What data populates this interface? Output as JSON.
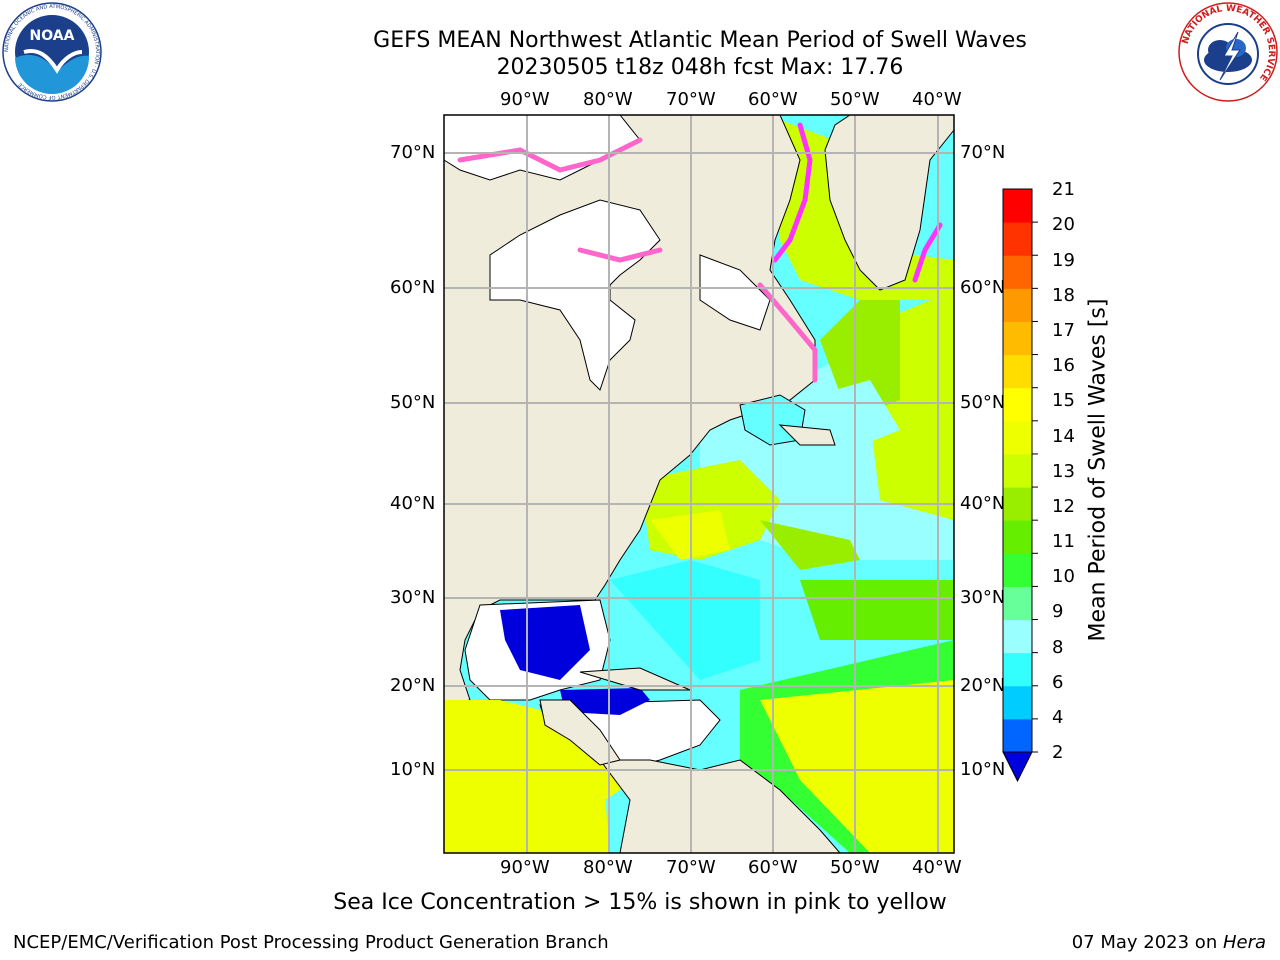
{
  "title_line1": "GEFS MEAN Northwest Atlantic Mean Period of Swell Waves",
  "title_line2": "20230505 t18z 048h fcst   Max: 17.76",
  "lon_ticks": [
    "90°W",
    "80°W",
    "70°W",
    "60°W",
    "50°W",
    "40°W"
  ],
  "lat_ticks": [
    "70°N",
    "60°N",
    "50°N",
    "40°N",
    "30°N",
    "20°N",
    "10°N"
  ],
  "colorbar": {
    "label": "Mean Period of Swell Waves [s]",
    "ticks": [
      "2",
      "4",
      "6",
      "8",
      "9",
      "10",
      "11",
      "12",
      "13",
      "14",
      "15",
      "16",
      "17",
      "18",
      "19",
      "20",
      "21"
    ],
    "colors": [
      "#0066ff",
      "#00ccff",
      "#33ffff",
      "#99ffff",
      "#66ff99",
      "#33ff33",
      "#66ee00",
      "#99ee00",
      "#ccff00",
      "#eeff00",
      "#ffff00",
      "#ffdd00",
      "#ffbb00",
      "#ff9900",
      "#ff6600",
      "#ff3300",
      "#ff0000"
    ],
    "extend_color": "#0000dd"
  },
  "colors": {
    "land": "#efecdc",
    "ocean_base": "#66ffff",
    "grid": "#b4b4b4",
    "ice_pink": "#ff66cc",
    "ice_magenta": "#ff33ff"
  },
  "logos": {
    "noaa_text": "NOAA",
    "noaa_ring_text": "NATIONAL OCEANIC AND ATMOSPHERIC ADMINISTRATION · U.S. DEPARTMENT OF COMMERCE",
    "nws_ring_text": "NATIONAL WEATHER SERVICE"
  },
  "caption": "Sea Ice Concentration > 15% is shown in pink to yellow",
  "footer_left": "NCEP/EMC/Verification Post Processing Product Generation Branch",
  "footer_right_prefix": "07 May 2023 on ",
  "footer_right_host": "Hera"
}
